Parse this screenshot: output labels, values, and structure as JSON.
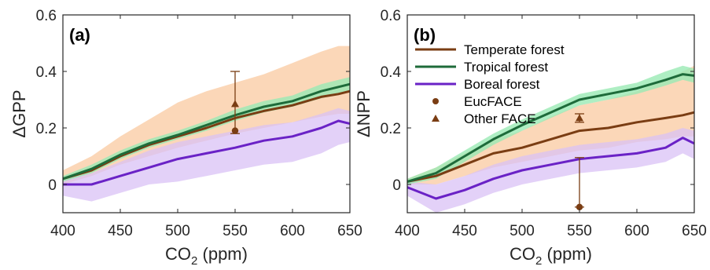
{
  "colors": {
    "temperate": "#7a3d13",
    "tropical": "#1e6b3a",
    "boreal": "#6a22c6",
    "temperate_band": "#f9c9a0",
    "tropical_band": "#9aeab4",
    "boreal_band": "#d9c2f5",
    "obs": "#7a3d13",
    "axis": "#262626"
  },
  "chart_data": [
    {
      "type": "line",
      "panel": "(a)",
      "xlabel": "CO",
      "xlabel_sub": "2",
      "xlabel_unit": " (ppm)",
      "ylabel": "ΔGPP",
      "xlim": [
        400,
        650
      ],
      "ylim": [
        -0.1,
        0.6
      ],
      "xticks": [
        "400",
        "450",
        "500",
        "550",
        "600",
        "650"
      ],
      "yticks": [
        "0",
        "0.2",
        "0.4",
        "0.6"
      ],
      "x": [
        400,
        425,
        450,
        475,
        500,
        525,
        550,
        575,
        600,
        625,
        640,
        650
      ],
      "series": [
        {
          "name": "Temperate forest",
          "values": [
            0.02,
            0.05,
            0.1,
            0.14,
            0.17,
            0.2,
            0.235,
            0.26,
            0.28,
            0.31,
            0.32,
            0.33
          ],
          "lower": [
            0.0,
            0.03,
            0.07,
            0.1,
            0.13,
            0.155,
            0.18,
            0.2,
            0.22,
            0.24,
            0.25,
            0.25
          ],
          "upper": [
            0.05,
            0.1,
            0.17,
            0.23,
            0.29,
            0.33,
            0.36,
            0.39,
            0.43,
            0.47,
            0.49,
            0.49
          ]
        },
        {
          "name": "Tropical forest",
          "values": [
            0.02,
            0.055,
            0.105,
            0.145,
            0.175,
            0.21,
            0.245,
            0.275,
            0.295,
            0.33,
            0.345,
            0.355
          ],
          "lower": [
            0.01,
            0.04,
            0.09,
            0.13,
            0.16,
            0.19,
            0.225,
            0.255,
            0.275,
            0.305,
            0.32,
            0.33
          ],
          "upper": [
            0.03,
            0.07,
            0.12,
            0.16,
            0.19,
            0.225,
            0.265,
            0.295,
            0.315,
            0.355,
            0.37,
            0.38
          ]
        },
        {
          "name": "Boreal forest",
          "values": [
            0.0,
            0.0,
            0.03,
            0.06,
            0.09,
            0.11,
            0.13,
            0.155,
            0.17,
            0.2,
            0.225,
            0.215
          ],
          "lower": [
            -0.04,
            -0.06,
            -0.03,
            0.0,
            0.01,
            0.03,
            0.05,
            0.07,
            0.08,
            0.11,
            0.14,
            0.15
          ],
          "upper": [
            0.02,
            0.04,
            0.08,
            0.12,
            0.15,
            0.17,
            0.19,
            0.21,
            0.22,
            0.25,
            0.27,
            0.26
          ]
        }
      ],
      "observations": [
        {
          "name": "EucFACE",
          "marker": "circle",
          "x": 550,
          "y": 0.19,
          "lower": 0.18,
          "upper": 0.4
        },
        {
          "name": "Other FACE",
          "marker": "triangle",
          "x": 550,
          "y": 0.285
        }
      ]
    },
    {
      "type": "line",
      "panel": "(b)",
      "xlabel": "CO",
      "xlabel_sub": "2",
      "xlabel_unit": " (ppm)",
      "ylabel": "ΔNPP",
      "xlim": [
        400,
        650
      ],
      "ylim": [
        -0.1,
        0.6
      ],
      "xticks": [
        "400",
        "450",
        "500",
        "550",
        "600",
        "650"
      ],
      "yticks": [
        "0",
        "0.2",
        "0.4",
        "0.6"
      ],
      "x": [
        400,
        425,
        450,
        475,
        500,
        525,
        550,
        575,
        600,
        625,
        640,
        650
      ],
      "series": [
        {
          "name": "Temperate forest",
          "values": [
            0.01,
            0.03,
            0.07,
            0.11,
            0.13,
            0.16,
            0.19,
            0.2,
            0.22,
            0.235,
            0.245,
            0.255
          ],
          "lower": [
            0.0,
            0.0,
            0.03,
            0.06,
            0.08,
            0.1,
            0.12,
            0.13,
            0.15,
            0.16,
            0.17,
            0.17
          ],
          "upper": [
            0.02,
            0.06,
            0.11,
            0.16,
            0.19,
            0.24,
            0.28,
            0.3,
            0.33,
            0.37,
            0.4,
            0.42
          ]
        },
        {
          "name": "Tropical forest",
          "values": [
            0.01,
            0.04,
            0.1,
            0.16,
            0.21,
            0.255,
            0.3,
            0.32,
            0.34,
            0.37,
            0.39,
            0.385
          ],
          "lower": [
            0.0,
            0.02,
            0.08,
            0.14,
            0.19,
            0.235,
            0.28,
            0.3,
            0.32,
            0.35,
            0.37,
            0.36
          ],
          "upper": [
            0.02,
            0.06,
            0.12,
            0.18,
            0.23,
            0.275,
            0.32,
            0.34,
            0.36,
            0.4,
            0.42,
            0.41
          ]
        },
        {
          "name": "Boreal forest",
          "values": [
            -0.01,
            -0.05,
            -0.02,
            0.02,
            0.05,
            0.07,
            0.09,
            0.1,
            0.11,
            0.13,
            0.165,
            0.145
          ],
          "lower": [
            -0.04,
            -0.1,
            -0.07,
            -0.03,
            0.0,
            0.02,
            0.04,
            0.05,
            0.06,
            0.08,
            0.11,
            0.09
          ],
          "upper": [
            0.01,
            0.0,
            0.03,
            0.07,
            0.1,
            0.12,
            0.14,
            0.15,
            0.16,
            0.18,
            0.2,
            0.19
          ]
        }
      ],
      "observations": [
        {
          "name": "EucFACE",
          "marker": "circle",
          "x": 550,
          "y": -0.08,
          "lower": -0.08,
          "upper": 0.095
        },
        {
          "name": "Other FACE",
          "marker": "triangle",
          "x": 550,
          "y": 0.235,
          "lower": 0.22,
          "upper": 0.25
        }
      ],
      "legend": {
        "placement": "top-left",
        "entries": [
          {
            "label": "Temperate forest",
            "type": "line",
            "color": "#7a3d13"
          },
          {
            "label": "Tropical forest",
            "type": "line",
            "color": "#1e6b3a"
          },
          {
            "label": "Boreal forest",
            "type": "line",
            "color": "#6a22c6"
          },
          {
            "label": "EucFACE",
            "type": "circle",
            "color": "#7a3d13"
          },
          {
            "label": "Other FACE",
            "type": "triangle",
            "color": "#7a3d13"
          }
        ]
      }
    }
  ]
}
